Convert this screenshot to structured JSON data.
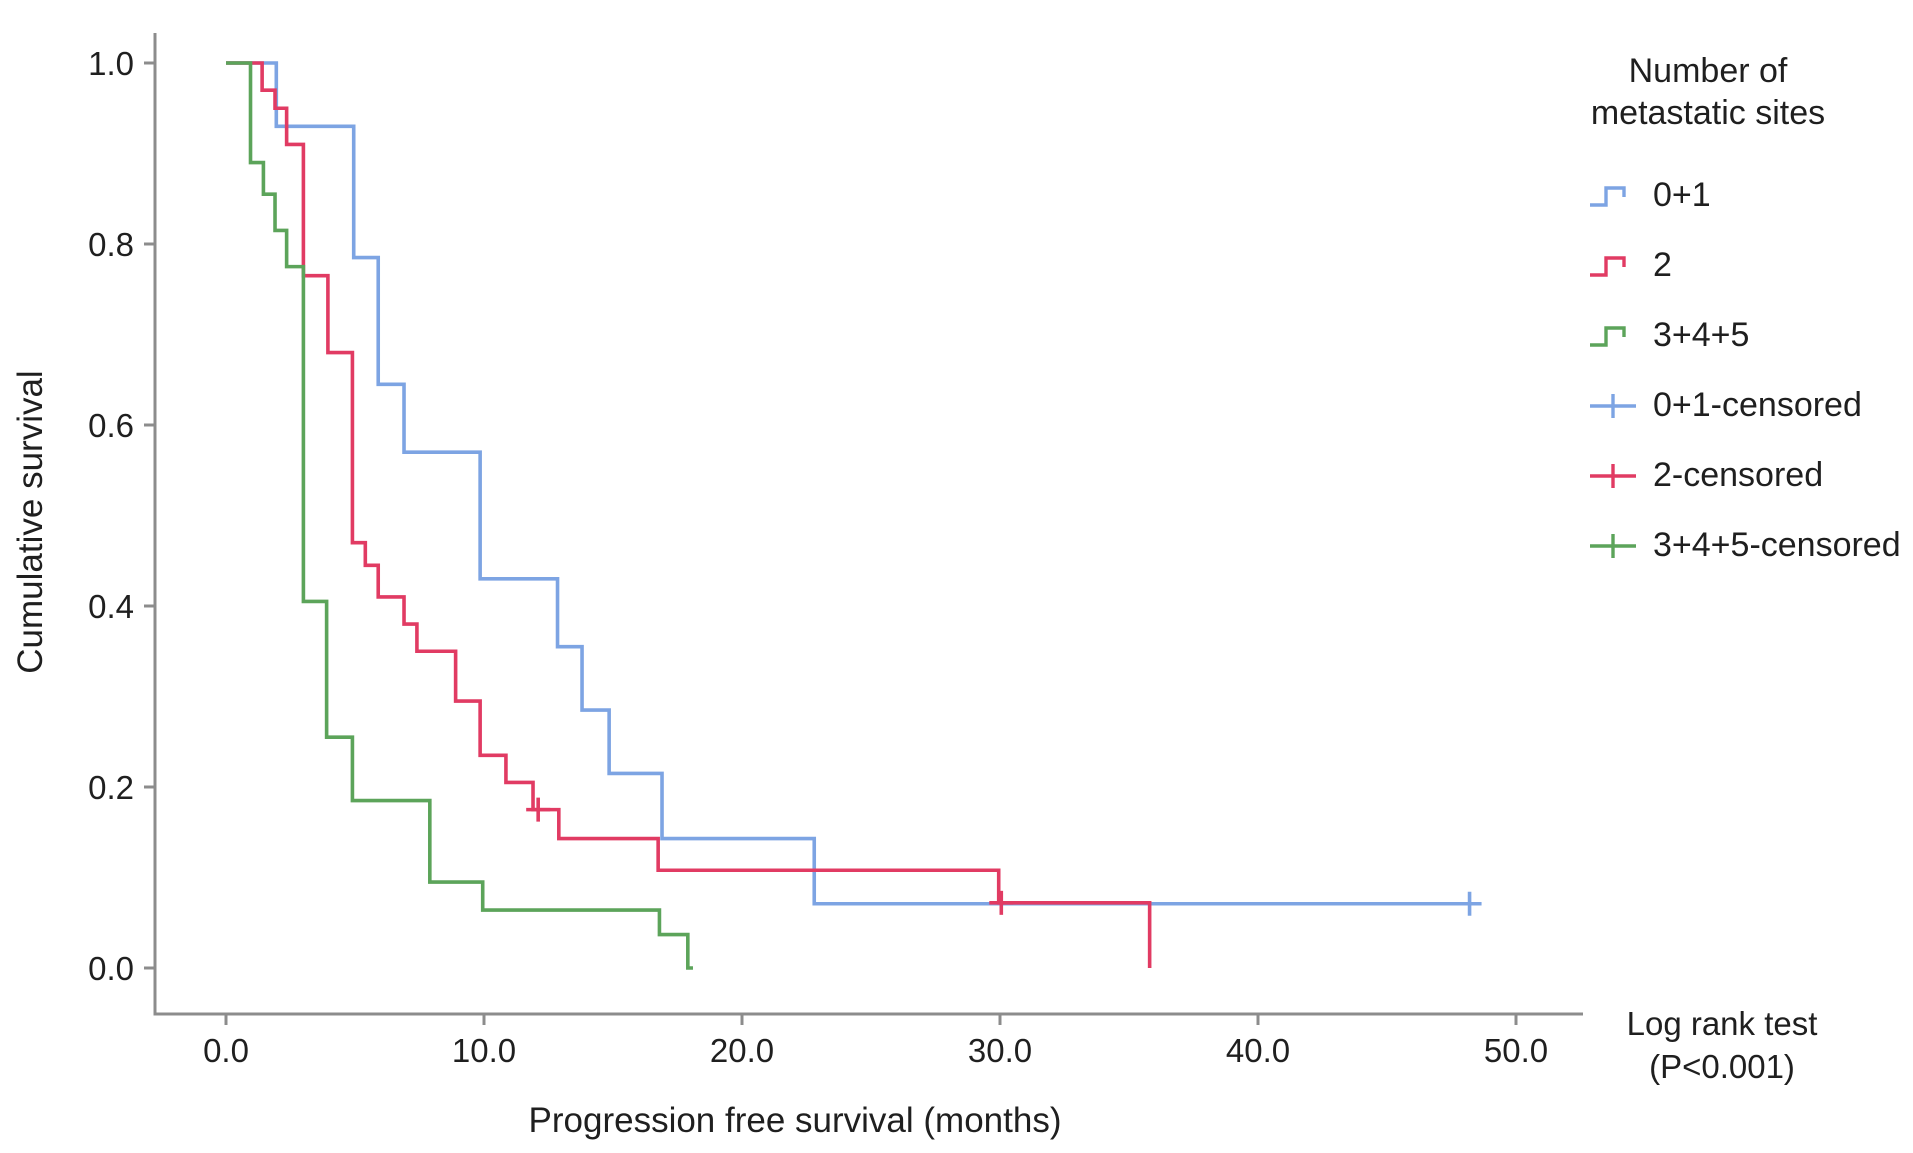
{
  "chart_data": {
    "type": "line",
    "subtype": "kaplan_meier_step",
    "title": "",
    "xlabel": "Progression free survival (months)",
    "ylabel": "Cumulative survival",
    "xlim": [
      0,
      52.5
    ],
    "ylim": [
      0,
      1.0
    ],
    "grid": false,
    "legend_position": "right",
    "annotation": "Log rank test (P<0.001)",
    "series": [
      {
        "name": "0+1",
        "color": "#7da4e3",
        "points": [
          [
            0,
            1.0
          ],
          [
            1.95,
            0.93
          ],
          [
            4.95,
            0.785
          ],
          [
            5.9,
            0.645
          ],
          [
            6.9,
            0.57
          ],
          [
            9.85,
            0.43
          ],
          [
            12.85,
            0.355
          ],
          [
            13.8,
            0.285
          ],
          [
            14.85,
            0.215
          ],
          [
            16.9,
            0.143
          ],
          [
            22.8,
            0.071
          ]
        ],
        "end_t": 48.2,
        "censored": [
          [
            48.2,
            0.071
          ]
        ]
      },
      {
        "name": "2",
        "color": "#e13b63",
        "points": [
          [
            0,
            1.0
          ],
          [
            1.4,
            0.97
          ],
          [
            1.9,
            0.95
          ],
          [
            2.35,
            0.91
          ],
          [
            3.0,
            0.765
          ],
          [
            3.95,
            0.68
          ],
          [
            4.9,
            0.47
          ],
          [
            5.4,
            0.445
          ],
          [
            5.9,
            0.41
          ],
          [
            6.9,
            0.38
          ],
          [
            7.4,
            0.35
          ],
          [
            8.9,
            0.295
          ],
          [
            9.85,
            0.235
          ],
          [
            10.85,
            0.205
          ],
          [
            11.9,
            0.175
          ],
          [
            12.9,
            0.143
          ],
          [
            16.75,
            0.108
          ],
          [
            29.95,
            0.072
          ],
          [
            35.8,
            0.0
          ]
        ],
        "end_t": 35.8,
        "censored": [
          [
            12.1,
            0.175
          ],
          [
            30.05,
            0.072
          ]
        ]
      },
      {
        "name": "3+4+5",
        "color": "#5ca45a",
        "points": [
          [
            0,
            1.0
          ],
          [
            0.95,
            0.89
          ],
          [
            1.45,
            0.855
          ],
          [
            1.9,
            0.815
          ],
          [
            2.35,
            0.775
          ],
          [
            3.0,
            0.405
          ],
          [
            3.9,
            0.255
          ],
          [
            4.9,
            0.185
          ],
          [
            7.9,
            0.095
          ],
          [
            9.95,
            0.064
          ],
          [
            16.8,
            0.037
          ],
          [
            17.9,
            0.0
          ]
        ],
        "end_t": 18.1,
        "censored": []
      }
    ]
  },
  "axes": {
    "x": {
      "title": "Progression free survival (months)",
      "tick_labels": [
        "0.0",
        "10.0",
        "20.0",
        "30.0",
        "40.0",
        "50.0"
      ],
      "tick_values": [
        0,
        10,
        20,
        30,
        40,
        50
      ]
    },
    "y": {
      "title": "Cumulative survival",
      "tick_labels": [
        "0.0",
        "0.2",
        "0.4",
        "0.6",
        "0.8",
        "1.0"
      ],
      "tick_values": [
        0,
        0.2,
        0.4,
        0.6,
        0.8,
        1.0
      ]
    }
  },
  "legend": {
    "title_line1": "Number of",
    "title_line2": "metastatic sites",
    "items": [
      {
        "label": "0+1",
        "type": "step",
        "color": "#7da4e3"
      },
      {
        "label": "2",
        "type": "step",
        "color": "#e13b63"
      },
      {
        "label": "3+4+5",
        "type": "step",
        "color": "#5ca45a"
      },
      {
        "label": "0+1-censored",
        "type": "censored",
        "color": "#7da4e3"
      },
      {
        "label": "2-censored",
        "type": "censored",
        "color": "#e13b63"
      },
      {
        "label": "3+4+5-censored",
        "type": "censored",
        "color": "#5ca45a"
      }
    ]
  },
  "annotation": {
    "line1": "Log rank test",
    "line2": "(P<0.001)"
  },
  "colors": {
    "axis": "#8c8c8c",
    "text": "#1f1f1f"
  }
}
